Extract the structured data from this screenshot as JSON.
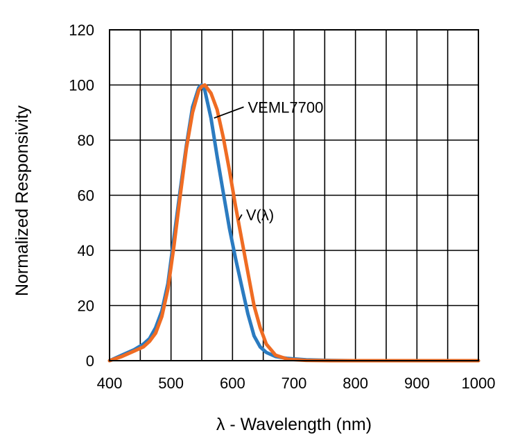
{
  "chart_data": {
    "type": "line",
    "title": "",
    "xlabel": "λ - Wavelength (nm)",
    "ylabel": "Normalized Responsivity",
    "xlim": [
      400,
      1000
    ],
    "ylim": [
      0,
      120
    ],
    "xticks": [
      400,
      500,
      600,
      700,
      800,
      900,
      1000
    ],
    "yticks": [
      0,
      20,
      40,
      60,
      80,
      100,
      120
    ],
    "xtick_labels": [
      "400",
      "500",
      "600",
      "700",
      "800",
      "900",
      "1000"
    ],
    "ytick_labels": [
      "0",
      "20",
      "40",
      "60",
      "80",
      "100",
      "120"
    ],
    "grid": true,
    "grid_x_step": 50,
    "grid_y_step": 20,
    "legend": "none",
    "series": [
      {
        "name": "VEML7700",
        "color": "#2b7bc0",
        "x": [
          400,
          420,
          440,
          455,
          465,
          475,
          485,
          495,
          505,
          515,
          525,
          535,
          545,
          550,
          555,
          565,
          575,
          585,
          595,
          605,
          615,
          625,
          635,
          645,
          655,
          670,
          690,
          720,
          760,
          800,
          900,
          1000
        ],
        "y": [
          0,
          2,
          4,
          6,
          8,
          12,
          18,
          28,
          45,
          62,
          78,
          92,
          99,
          100,
          98,
          88,
          74,
          61,
          48,
          37,
          27,
          17,
          9,
          5,
          3,
          1.5,
          0.8,
          0.3,
          0.1,
          0,
          0,
          0
        ]
      },
      {
        "name": "V(λ)",
        "color": "#ef6c23",
        "x": [
          400,
          420,
          440,
          455,
          465,
          475,
          485,
          495,
          505,
          515,
          525,
          535,
          545,
          550,
          555,
          565,
          575,
          585,
          595,
          605,
          615,
          625,
          635,
          645,
          655,
          670,
          690,
          720,
          760,
          800,
          900,
          1000
        ],
        "y": [
          0,
          1.5,
          3.5,
          5,
          7,
          10,
          16,
          26,
          42,
          60,
          77,
          90,
          98,
          99.5,
          100,
          97,
          91,
          81,
          69,
          56,
          44,
          32,
          20,
          12,
          6,
          2,
          0.5,
          0.1,
          0,
          0,
          0,
          0
        ]
      }
    ],
    "annotations": [
      {
        "text": "VEML7700",
        "series": 0,
        "x": 570,
        "y": 88,
        "text_x": 625,
        "text_y": 91
      },
      {
        "text": "V(λ)",
        "series": 1,
        "x": 610,
        "y": 51,
        "text_x": 622,
        "text_y": 52
      }
    ]
  }
}
